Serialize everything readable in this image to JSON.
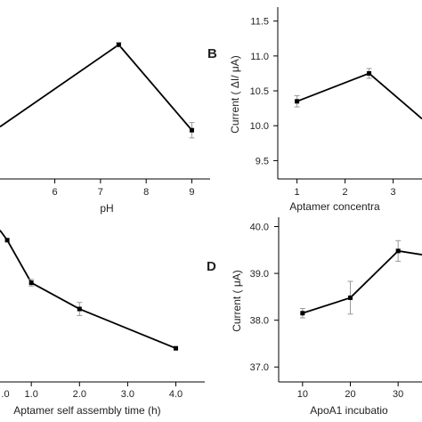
{
  "chart_data": [
    {
      "type": "line",
      "panel_label": "",
      "xlabel": "pH",
      "ylabel": "",
      "x_ticks": [
        6,
        7,
        8,
        9
      ],
      "y_ticks": [],
      "xlim": [
        4.8,
        9.4
      ],
      "ylim": [
        0,
        10
      ],
      "series": [
        {
          "x": [
            4.8,
            7.4,
            9.0
          ],
          "y": [
            3.0,
            7.8,
            2.8
          ],
          "err": [
            0,
            0.12,
            0.45
          ]
        }
      ]
    },
    {
      "type": "line",
      "panel_label": "B",
      "xlabel": "Aptamer concentra",
      "ylabel": "Current ( ΔI/ μA)",
      "x_ticks": [
        1,
        2,
        3
      ],
      "y_ticks": [
        "9.5",
        "10.0",
        "10.5",
        "11.0",
        "11.5"
      ],
      "xlim": [
        0.6,
        3.6
      ],
      "ylim": [
        9.25,
        11.7
      ],
      "series": [
        {
          "x": [
            1.0,
            2.5,
            3.6
          ],
          "y": [
            10.35,
            10.75,
            10.1
          ],
          "err": [
            0.08,
            0.07,
            0
          ]
        }
      ]
    },
    {
      "type": "line",
      "panel_label": "",
      "xlabel": "Aptamer self assembly time (h)",
      "ylabel": "",
      "x_ticks": [
        "1.0",
        "2.0",
        "3.0",
        "4.0"
      ],
      "x_tick_values": [
        1.0,
        2.0,
        3.0,
        4.0
      ],
      "x_tick_partial": ".0",
      "y_ticks": [],
      "xlim": [
        0.35,
        4.6
      ],
      "ylim": [
        0,
        10
      ],
      "series": [
        {
          "x": [
            0.35,
            0.5,
            1.0,
            2.0,
            4.0
          ],
          "y": [
            9.2,
            8.6,
            6.0,
            4.4,
            2.0
          ],
          "err": [
            0,
            0,
            0.2,
            0.4,
            0
          ]
        }
      ]
    },
    {
      "type": "line",
      "panel_label": "D",
      "xlabel": "ApoA1 incubatio",
      "ylabel": "Current ( μA)",
      "x_ticks": [
        10,
        20,
        30
      ],
      "y_ticks": [
        "37.0",
        "38.0",
        "39.0",
        "40.0"
      ],
      "xlim": [
        5,
        35
      ],
      "ylim": [
        36.7,
        40.2
      ],
      "series": [
        {
          "x": [
            10,
            20,
            30,
            35
          ],
          "y": [
            38.15,
            38.48,
            39.48,
            39.4
          ],
          "err": [
            0.1,
            0.35,
            0.22,
            0
          ]
        }
      ]
    }
  ]
}
